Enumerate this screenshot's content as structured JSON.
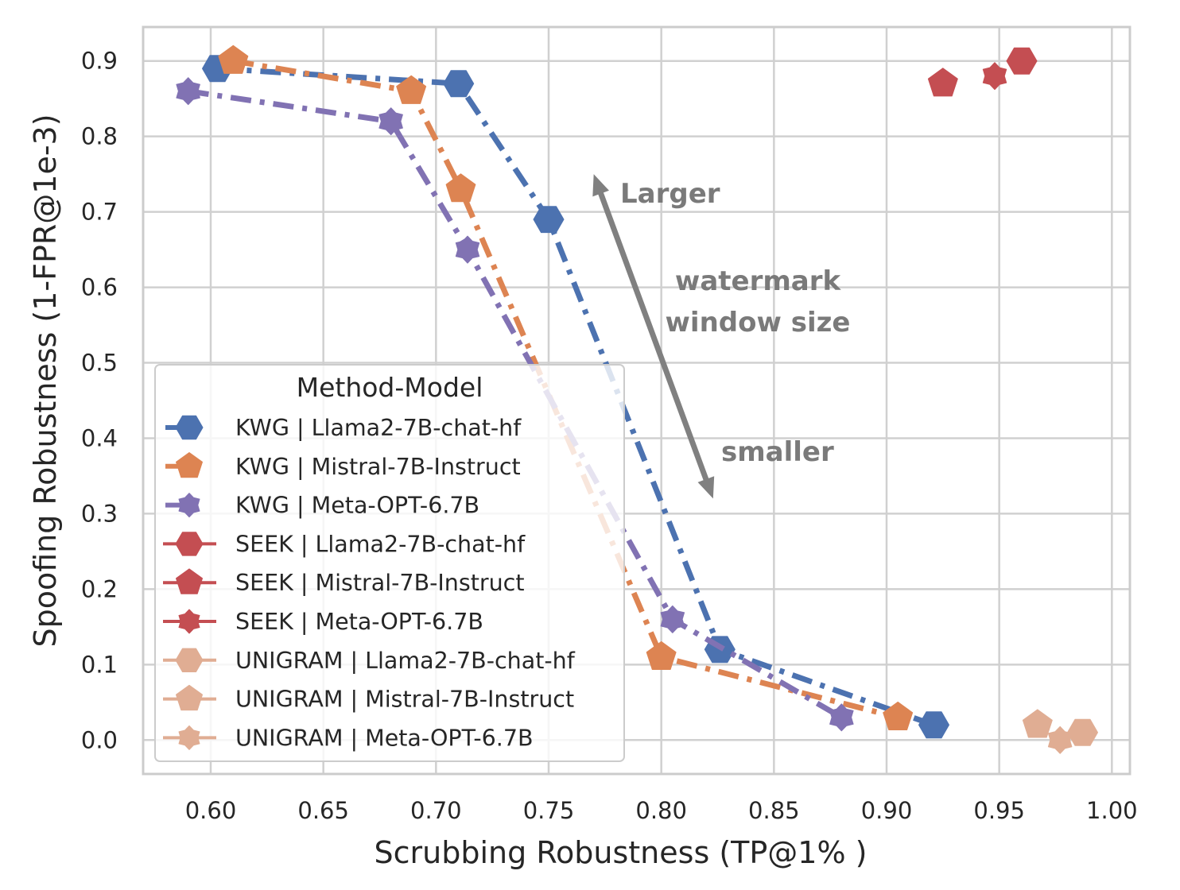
{
  "chart_data": {
    "type": "line",
    "title": "",
    "xlabel": "Scrubbing Robustness (TP@1% )",
    "ylabel": "Spoofing Robustness (1-FPR@1e-3)",
    "xlim": [
      0.57,
      1.008
    ],
    "ylim": [
      -0.045,
      0.945
    ],
    "xticks": [
      "0.60",
      "0.65",
      "0.70",
      "0.75",
      "0.80",
      "0.85",
      "0.90",
      "0.95",
      "1.00"
    ],
    "xtick_values": [
      0.6,
      0.65,
      0.7,
      0.75,
      0.8,
      0.85,
      0.9,
      0.95,
      1.0
    ],
    "yticks": [
      "0.0",
      "0.1",
      "0.2",
      "0.3",
      "0.4",
      "0.5",
      "0.6",
      "0.7",
      "0.8",
      "0.9"
    ],
    "ytick_values": [
      0.0,
      0.1,
      0.2,
      0.3,
      0.4,
      0.5,
      0.6,
      0.7,
      0.8,
      0.9
    ],
    "grid": true,
    "legend": {
      "title": "Method-Model",
      "placement": "lower-left"
    },
    "series": [
      {
        "name": "KWG | Llama2-7B-chat-hf",
        "color": "#4c72b0",
        "marker": "hexagon",
        "line": "dashdot",
        "x": [
          0.603,
          0.71,
          0.75,
          0.826,
          0.921
        ],
        "y": [
          0.89,
          0.87,
          0.69,
          0.12,
          0.02
        ]
      },
      {
        "name": "KWG | Mistral-7B-Instruct",
        "color": "#dd8452",
        "marker": "pentagon",
        "line": "dashdot",
        "x": [
          0.61,
          0.689,
          0.711,
          0.8,
          0.905
        ],
        "y": [
          0.9,
          0.86,
          0.73,
          0.11,
          0.03
        ]
      },
      {
        "name": "KWG | Meta-OPT-6.7B",
        "color": "#8172b3",
        "marker": "star",
        "line": "dashdot",
        "x": [
          0.59,
          0.68,
          0.714,
          0.805,
          0.88
        ],
        "y": [
          0.86,
          0.82,
          0.65,
          0.16,
          0.03
        ]
      },
      {
        "name": "SEEK | Llama2-7B-chat-hf",
        "color": "#c44e52",
        "marker": "hexagon",
        "line": "solid",
        "x": [
          0.96
        ],
        "y": [
          0.9
        ]
      },
      {
        "name": "SEEK | Mistral-7B-Instruct",
        "color": "#c44e52",
        "marker": "pentagon",
        "line": "solid",
        "x": [
          0.925
        ],
        "y": [
          0.87
        ]
      },
      {
        "name": "SEEK | Meta-OPT-6.7B",
        "color": "#c44e52",
        "marker": "star",
        "line": "solid",
        "x": [
          0.948
        ],
        "y": [
          0.88
        ]
      },
      {
        "name": "UNIGRAM | Llama2-7B-chat-hf",
        "color": "#e0ad93",
        "marker": "hexagon",
        "line": "solid",
        "x": [
          0.987
        ],
        "y": [
          0.01
        ]
      },
      {
        "name": "UNIGRAM | Mistral-7B-Instruct",
        "color": "#e0ad93",
        "marker": "pentagon",
        "line": "solid",
        "x": [
          0.967
        ],
        "y": [
          0.02
        ]
      },
      {
        "name": "UNIGRAM | Meta-OPT-6.7B",
        "color": "#e0ad93",
        "marker": "star",
        "line": "solid",
        "x": [
          0.977
        ],
        "y": [
          0.0
        ]
      }
    ],
    "annotations": {
      "top_label": "Larger",
      "middle_label_line1": "watermark",
      "middle_label_line2": "window size",
      "bottom_label": "smaller",
      "arrow": {
        "from": [
          0.823,
          0.32
        ],
        "to": [
          0.77,
          0.75
        ],
        "color": "#808080",
        "double_headed": true
      }
    }
  }
}
